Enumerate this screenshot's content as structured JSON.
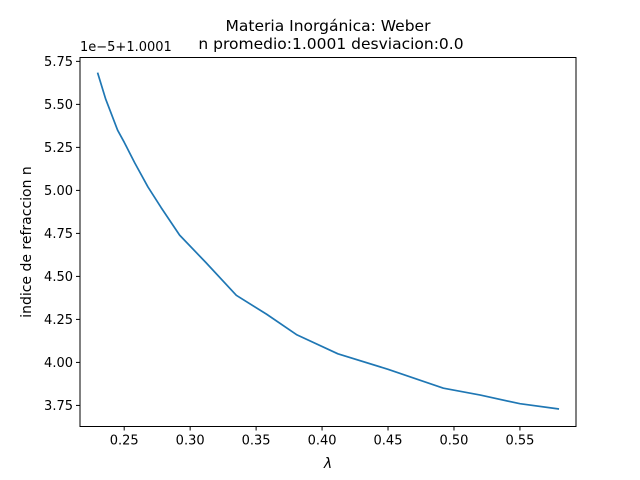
{
  "chart_data": {
    "type": "line",
    "title": "Materia Inorgánica: Weber",
    "subtitle": "n promedio:1.0001 desviacion:0.0",
    "xlabel": "λ",
    "ylabel": "indice de refraccion n",
    "y_offset_text": "1e−5+1.0001",
    "xlim": [
      0.2165,
      0.5925
    ],
    "ylim": [
      3.6275,
      5.7725
    ],
    "x_ticks": [
      0.25,
      0.3,
      0.35,
      0.4,
      0.45,
      0.5,
      0.55
    ],
    "x_tick_labels": [
      "0.25",
      "0.30",
      "0.35",
      "0.40",
      "0.45",
      "0.50",
      "0.55"
    ],
    "y_ticks": [
      3.75,
      4.0,
      4.25,
      4.5,
      4.75,
      5.0,
      5.25,
      5.5,
      5.75
    ],
    "y_tick_labels": [
      "3.75",
      "4.00",
      "4.25",
      "4.50",
      "4.75",
      "5.00",
      "5.25",
      "5.50",
      "5.75"
    ],
    "grid": false,
    "series": [
      {
        "color": "#1f77b4",
        "x": [
          0.23,
          0.236,
          0.24,
          0.245,
          0.25,
          0.258,
          0.268,
          0.278,
          0.292,
          0.312,
          0.335,
          0.358,
          0.381,
          0.412,
          0.45,
          0.492,
          0.52,
          0.55,
          0.579
        ],
        "y": [
          5.68,
          5.53,
          5.45,
          5.35,
          5.28,
          5.16,
          5.02,
          4.9,
          4.74,
          4.58,
          4.39,
          4.28,
          4.16,
          4.05,
          3.96,
          3.85,
          3.81,
          3.76,
          3.73
        ]
      }
    ]
  }
}
